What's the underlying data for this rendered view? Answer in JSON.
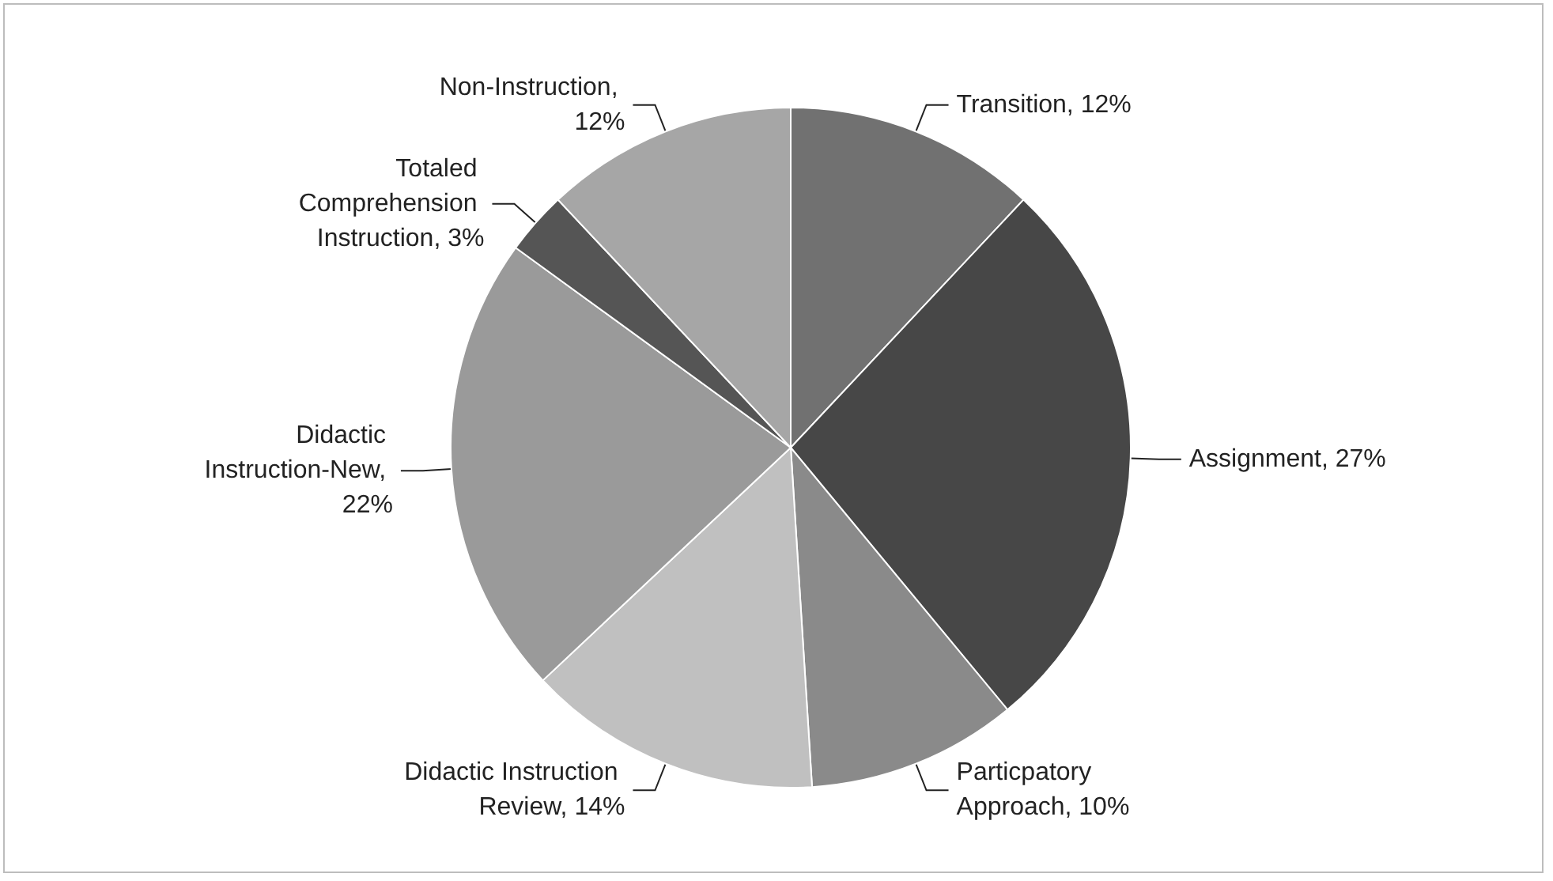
{
  "chart_data": {
    "type": "pie",
    "categories": [
      "Transition, 12%",
      "Assignment, 27%",
      "Particpatory Approach, 10%",
      "Didactic Instruction Review, 14%",
      "Didactic Instruction-New, 22%",
      "Totaled Comprehension Instruction, 3%",
      "Non-Instruction, 12%"
    ],
    "values": [
      12,
      27,
      10,
      14,
      22,
      3,
      12
    ],
    "colors": [
      "#717171",
      "#474747",
      "#8a8a8a",
      "#c0c0c0",
      "#9a9a9a",
      "#555555",
      "#a6a6a6"
    ],
    "legend": false
  }
}
